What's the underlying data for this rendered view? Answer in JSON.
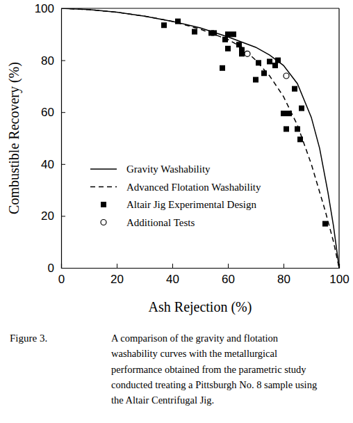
{
  "chart_data": {
    "type": "line",
    "x_label": "Ash Rejection (%)",
    "y_label": "Combustible Recovery (%)",
    "xlim": [
      0,
      100
    ],
    "ylim": [
      0,
      100
    ],
    "xticks": [
      0,
      20,
      40,
      60,
      80,
      100
    ],
    "yticks": [
      0,
      20,
      40,
      60,
      80,
      100
    ],
    "grid": false,
    "legend": "lower left",
    "series": [
      {
        "name": "Gravity Washability",
        "type": "line",
        "line_style": "solid",
        "color": "#000000",
        "x": [
          0,
          10,
          20,
          30,
          40,
          50,
          60,
          70,
          75,
          80,
          85,
          90,
          93,
          96,
          98,
          100
        ],
        "values": [
          100,
          99.5,
          98.5,
          97,
          95,
          92.5,
          89,
          85,
          82,
          78,
          71,
          58,
          46,
          29,
          16,
          0
        ]
      },
      {
        "name": "Advanced Flotation Washability",
        "type": "line",
        "line_style": "dashed",
        "color": "#000000",
        "x": [
          0,
          10,
          20,
          30,
          40,
          50,
          60,
          65,
          70,
          75,
          80,
          85,
          90,
          95,
          98,
          100
        ],
        "values": [
          100,
          99.5,
          98.5,
          97,
          95,
          92,
          88,
          85,
          80,
          74,
          66,
          55,
          40,
          22,
          10,
          0
        ]
      },
      {
        "name": "Altair Jig Experimental Design",
        "type": "scatter",
        "marker": "square",
        "color": "#000000",
        "x": [
          37,
          42,
          48,
          54,
          55,
          59,
          60,
          60,
          62,
          58,
          64,
          65,
          65,
          70,
          71,
          73,
          75,
          77,
          78,
          80,
          81,
          82,
          84,
          85,
          86,
          86.5,
          95
        ],
        "values": [
          93.5,
          95,
          91,
          90.5,
          90.5,
          88,
          90,
          84.5,
          90,
          77,
          86,
          82.5,
          84,
          72.5,
          79,
          75,
          79.5,
          78,
          80,
          59.5,
          53.5,
          59.5,
          69,
          53.5,
          49.5,
          61.5,
          17
        ]
      },
      {
        "name": "Additional Tests",
        "type": "scatter",
        "marker": "open_circle",
        "color": "#000000",
        "x": [
          67,
          81
        ],
        "values": [
          82.5,
          74
        ]
      }
    ],
    "caption": {
      "label": "Figure 3.",
      "lines": [
        "A comparison of the gravity and flotation",
        "washability curves with the metallurgical",
        "performance obtained from the parametric study",
        "conducted treating a Pittsburgh No. 8 sample using",
        "the Altair Centrifugal Jig."
      ]
    }
  }
}
